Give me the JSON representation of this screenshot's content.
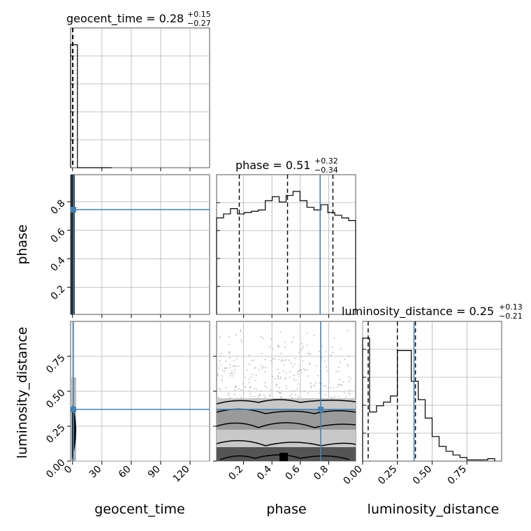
{
  "chart_data": {
    "type": "corner",
    "parameters": [
      "geocent_time",
      "phase",
      "luminosity_distance"
    ],
    "truth": {
      "geocent_time": 0.28,
      "phase": 0.74,
      "luminosity_distance": 0.37
    },
    "titles": {
      "geocent_time": {
        "label": "geocent_time = 0.28",
        "plus": "+0.15",
        "minus": "−0.27"
      },
      "phase": {
        "label": "phase = 0.51",
        "plus": "+0.32",
        "minus": "−0.34"
      },
      "luminosity_distance": {
        "label": "luminosity_distance = 0.25",
        "plus": "+0.13",
        "minus": "−0.21"
      }
    },
    "axes": {
      "geocent_time": {
        "range": [
          -2,
          140
        ],
        "ticks": [
          0,
          30,
          60,
          90,
          120
        ],
        "tick_labels": [
          "0",
          "30",
          "60",
          "90",
          "120"
        ]
      },
      "phase": {
        "range": [
          0.01,
          0.99
        ],
        "ticks": [
          0.2,
          0.4,
          0.6,
          0.8
        ],
        "tick_labels": [
          "0.2",
          "0.4",
          "0.6",
          "0.8"
        ]
      },
      "luminosity_distance": {
        "range": [
          0.0,
          1.0
        ],
        "ticks": [
          0.0,
          0.25,
          0.5,
          0.75
        ],
        "tick_labels": [
          "0.00",
          "0.25",
          "0.50",
          "0.75"
        ]
      }
    },
    "histograms": {
      "geocent_time": {
        "bins": [
          -2,
          5,
          12,
          19,
          26,
          33,
          40
        ],
        "counts": [
          1.0,
          0,
          0,
          0,
          0,
          0
        ],
        "quantile_lines": [
          0.01,
          0.28,
          0.43
        ]
      },
      "phase": {
        "bins": [
          0.01,
          0.059,
          0.108,
          0.157,
          0.206,
          0.255,
          0.304,
          0.353,
          0.402,
          0.451,
          0.5,
          0.549,
          0.598,
          0.647,
          0.696,
          0.745,
          0.794,
          0.843,
          0.892,
          0.941,
          0.99
        ],
        "counts": [
          0.73,
          0.76,
          0.8,
          0.76,
          0.77,
          0.78,
          0.79,
          0.86,
          0.89,
          0.85,
          0.9,
          0.93,
          0.86,
          0.81,
          0.79,
          0.83,
          0.77,
          0.75,
          0.73,
          0.71
        ],
        "quantile_lines": [
          0.17,
          0.51,
          0.83
        ]
      },
      "luminosity_distance": {
        "bins": [
          0.0,
          0.05,
          0.1,
          0.15,
          0.2,
          0.25,
          0.3,
          0.35,
          0.4,
          0.45,
          0.5,
          0.55,
          0.6,
          0.65,
          0.7,
          0.75,
          0.8,
          0.85,
          0.9,
          0.95
        ],
        "counts": [
          1.0,
          0.4,
          0.45,
          0.48,
          0.53,
          0.9,
          0.9,
          0.65,
          0.5,
          0.35,
          0.2,
          0.12,
          0.08,
          0.05,
          0.03,
          0.01,
          0.01,
          0.01,
          0.02
        ],
        "quantile_lines": [
          0.04,
          0.25,
          0.38
        ]
      }
    },
    "grid": true
  }
}
